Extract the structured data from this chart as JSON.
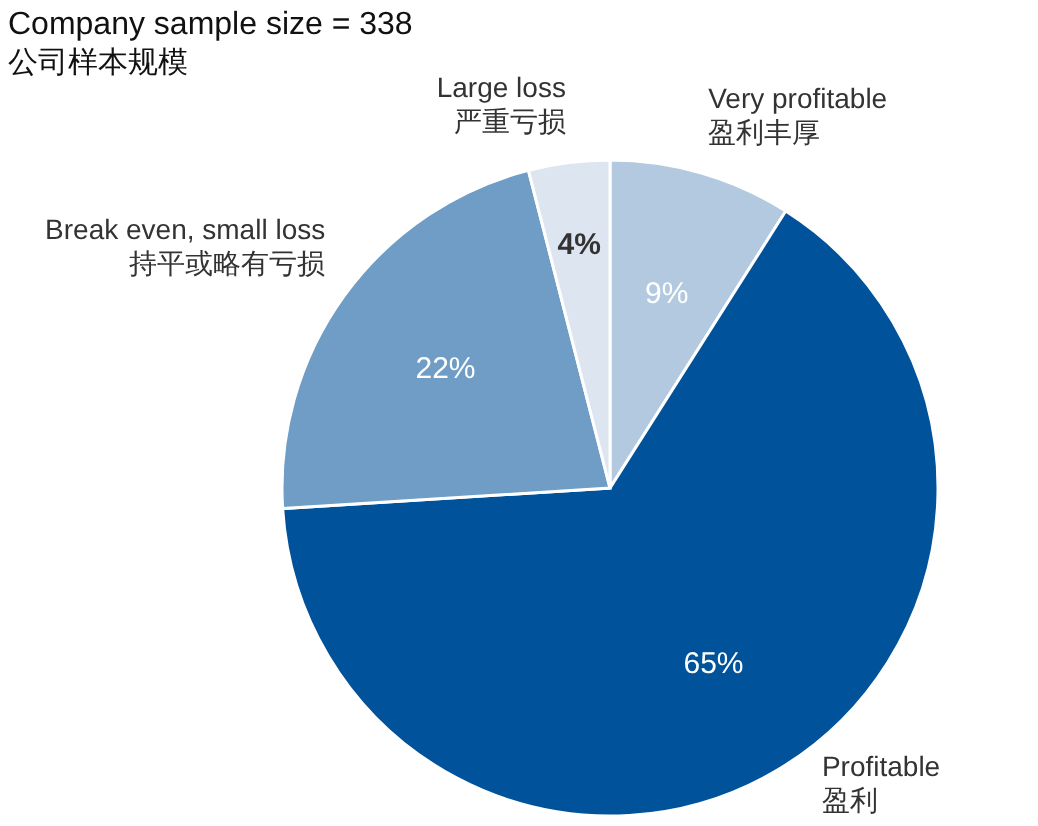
{
  "chart_data": {
    "type": "pie",
    "title": "Company sample size = 338",
    "subtitle": "公司样本规模",
    "categories": [
      "Very profitable\n盈利丰厚",
      "Profitable\n盈利",
      "Break even, small loss\n持平或略有亏损",
      "Large loss\n严重亏损"
    ],
    "values": [
      9,
      65,
      22,
      4
    ],
    "colors": [
      "#b3c9df",
      "#00529b",
      "#6f9dc6",
      "#dde6f0"
    ],
    "value_labels": [
      "9%",
      "65%",
      "22%",
      "4%"
    ]
  }
}
